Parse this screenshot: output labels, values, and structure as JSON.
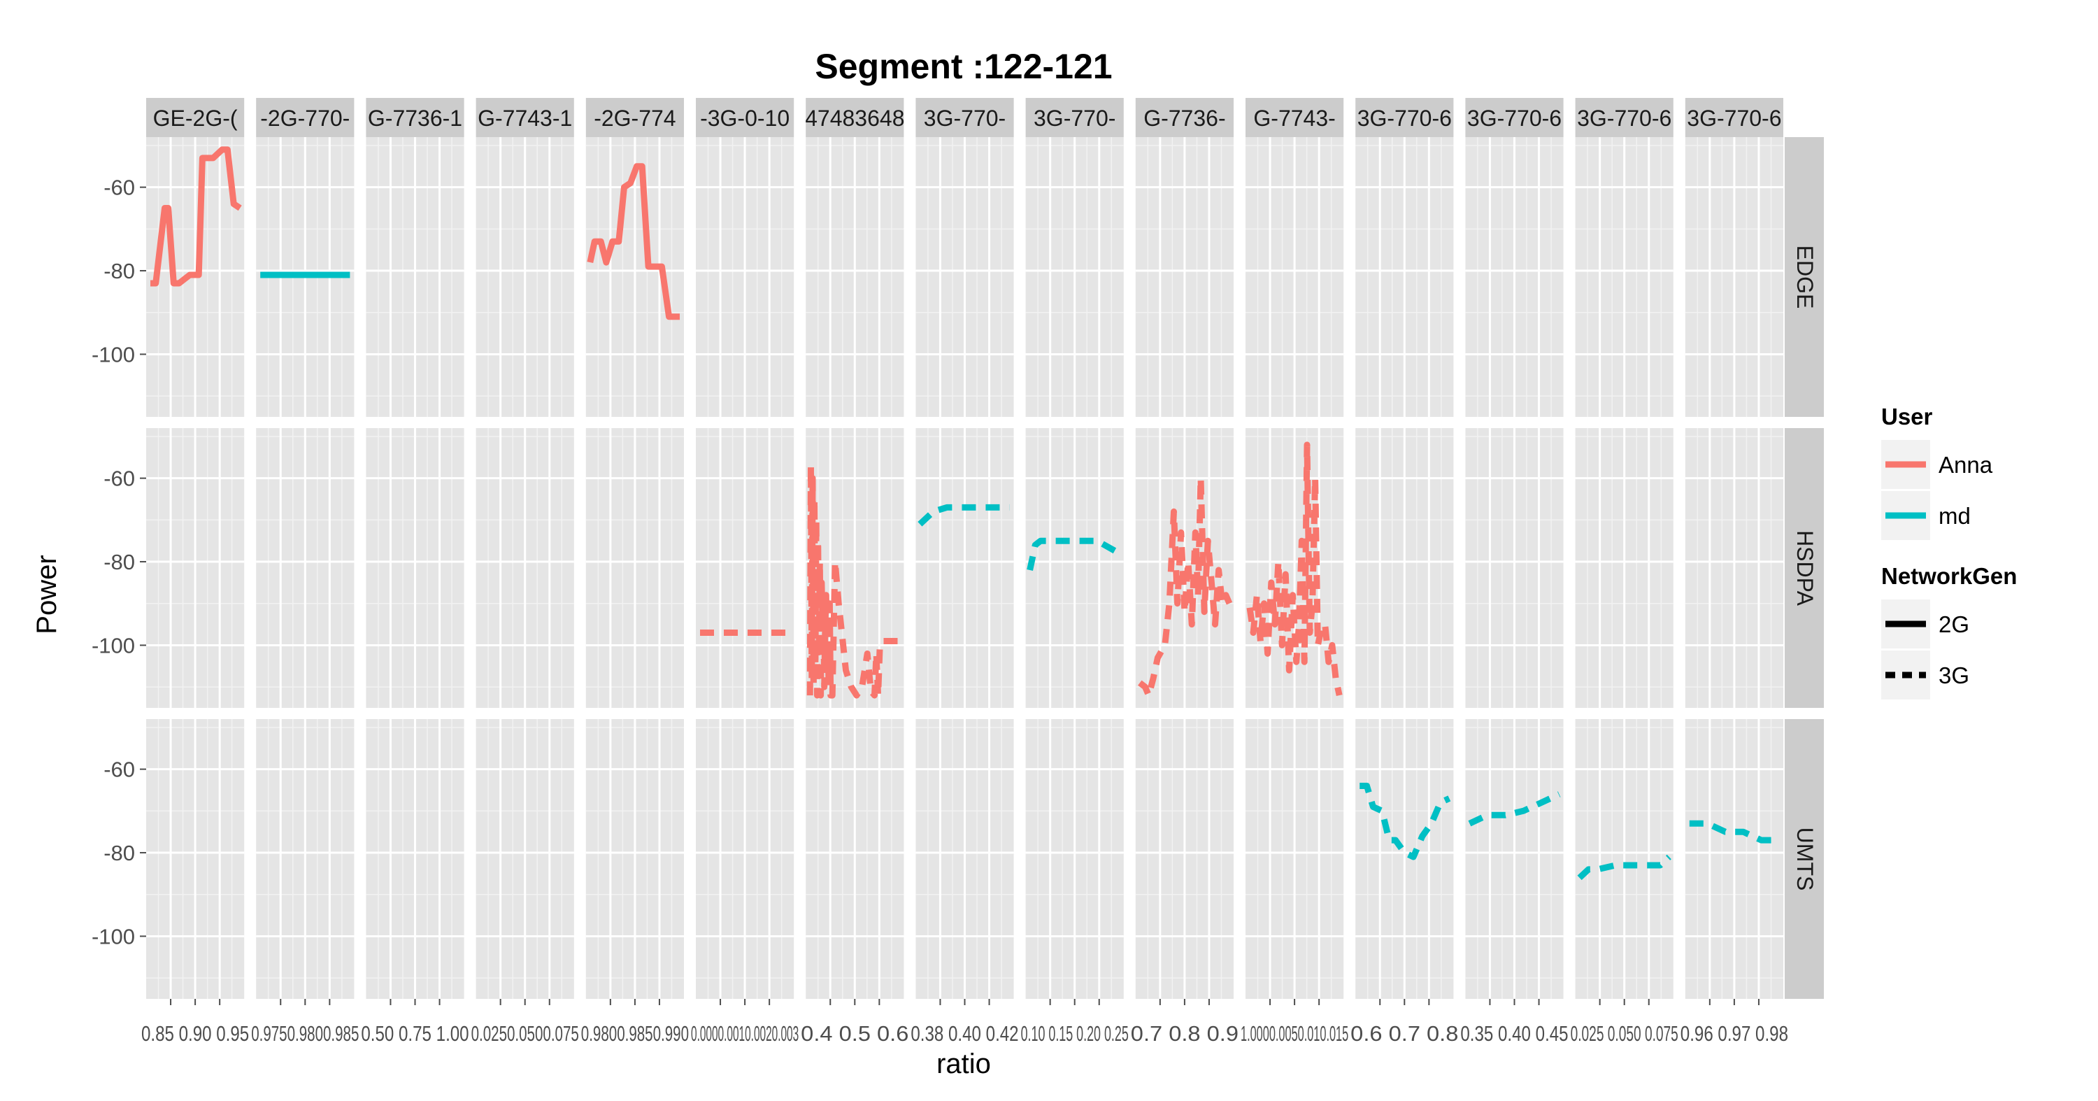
{
  "chart_data": {
    "type": "line",
    "title": "Segment :122-121",
    "xlabel": "ratio",
    "ylabel": "Power",
    "ylim": [
      -115,
      -48
    ],
    "y_ticks": [
      -60,
      -80,
      -100
    ],
    "y_tick_labels": [
      "-60",
      "-80",
      "-100"
    ],
    "rows": [
      "EDGE",
      "HSDPA",
      "UMTS"
    ],
    "columns": [
      {
        "label": "GE-2G-(",
        "x_tick_text": "0.85 0.90 0.95"
      },
      {
        "label": "-2G-770-",
        "x_tick_text": "0.9750.9800.985"
      },
      {
        "label": "G-7736-1",
        "x_tick_text": "0.50 0.75 1.00"
      },
      {
        "label": "G-7743-1",
        "x_tick_text": "0.0250.0500.075"
      },
      {
        "label": "-2G-774",
        "x_tick_text": "0.9800.9850.990"
      },
      {
        "label": "-3G-0-10",
        "x_tick_text": "0.0000.0010.0020.003"
      },
      {
        "label": "47483648",
        "x_tick_text": "0.4 0.5 0.6"
      },
      {
        "label": "3G-770-",
        "x_tick_text": "0.38 0.40 0.42"
      },
      {
        "label": "3G-770-",
        "x_tick_text": "0.10 0.15 0.20 0.25"
      },
      {
        "label": "G-7736-",
        "x_tick_text": "0.7 0.8 0.9"
      },
      {
        "label": "G-7743-",
        "x_tick_text": "1.0000.0050.010.015"
      },
      {
        "label": "3G-770-6",
        "x_tick_text": "0.6 0.7 0.8"
      },
      {
        "label": "3G-770-6",
        "x_tick_text": "0.35 0.40 0.45"
      },
      {
        "label": "3G-770-6",
        "x_tick_text": "0.025 0.050 0.075"
      },
      {
        "label": "3G-770-6",
        "x_tick_text": "0.96 0.97 0.98"
      }
    ],
    "series": [
      {
        "row": 0,
        "col": 0,
        "user": "Anna",
        "gen": "2G",
        "x": [
          0.0,
          0.06,
          0.16,
          0.2,
          0.26,
          0.32,
          0.38,
          0.44,
          0.54,
          0.58,
          0.64,
          0.7,
          0.8,
          0.86,
          0.93,
          1.0
        ],
        "y": [
          -83,
          -83,
          -65,
          -65,
          -83,
          -83,
          -82,
          -81,
          -81,
          -53,
          -53,
          -53,
          -51,
          -51,
          -64,
          -65
        ]
      },
      {
        "row": 0,
        "col": 1,
        "user": "md",
        "gen": "2G",
        "x": [
          0.0,
          1.0
        ],
        "y": [
          -81,
          -81
        ]
      },
      {
        "row": 0,
        "col": 4,
        "user": "Anna",
        "gen": "2G",
        "x": [
          0.0,
          0.05,
          0.12,
          0.18,
          0.25,
          0.32,
          0.38,
          0.45,
          0.52,
          0.58,
          0.65,
          0.72,
          0.8,
          0.88,
          0.93,
          1.0
        ],
        "y": [
          -78,
          -73,
          -73,
          -78,
          -73,
          -73,
          -60,
          -59,
          -55,
          -55,
          -79,
          -79,
          -79,
          -91,
          -91,
          -91
        ]
      },
      {
        "row": 1,
        "col": 5,
        "user": "Anna",
        "gen": "3G",
        "x": [
          0.0,
          1.0
        ],
        "y": [
          -97,
          -97
        ]
      },
      {
        "row": 1,
        "col": 6,
        "user": "Anna",
        "gen": "3G",
        "x": [
          0.0,
          0.01,
          0.02,
          0.03,
          0.04,
          0.05,
          0.06,
          0.07,
          0.08,
          0.09,
          0.1,
          0.11,
          0.12,
          0.13,
          0.14,
          0.15,
          0.16,
          0.17,
          0.18,
          0.19,
          0.2,
          0.21,
          0.22,
          0.23,
          0.25,
          0.28,
          0.32,
          0.36,
          0.4,
          0.46,
          0.52,
          0.58,
          0.64,
          0.68,
          0.72,
          0.74,
          0.76,
          0.78,
          0.82,
          0.88,
          0.94,
          1.0
        ],
        "y": [
          -112,
          -57,
          -108,
          -60,
          -110,
          -65,
          -105,
          -70,
          -112,
          -75,
          -100,
          -80,
          -112,
          -85,
          -95,
          -90,
          -110,
          -95,
          -88,
          -105,
          -100,
          -110,
          -90,
          -112,
          -112,
          -80,
          -90,
          -98,
          -106,
          -110,
          -112,
          -110,
          -102,
          -111,
          -112,
          -102,
          -112,
          -100,
          -99,
          -99,
          -99,
          -99
        ]
      },
      {
        "row": 1,
        "col": 7,
        "user": "md",
        "gen": "3G",
        "x": [
          0.0,
          0.15,
          0.3,
          0.5,
          0.7,
          1.0
        ],
        "y": [
          -71,
          -68,
          -67,
          -67,
          -67,
          -67
        ]
      },
      {
        "row": 1,
        "col": 8,
        "user": "md",
        "gen": "3G",
        "x": [
          0.0,
          0.06,
          0.12,
          0.25,
          0.5,
          0.75,
          1.0
        ],
        "y": [
          -82,
          -76,
          -75,
          -75,
          -75,
          -75,
          -78
        ]
      },
      {
        "row": 1,
        "col": 9,
        "user": "Anna",
        "gen": "3G",
        "x": [
          0.0,
          0.06,
          0.1,
          0.15,
          0.2,
          0.28,
          0.33,
          0.38,
          0.42,
          0.46,
          0.5,
          0.54,
          0.58,
          0.62,
          0.65,
          0.68,
          0.72,
          0.76,
          0.8,
          0.84,
          0.88,
          0.92,
          0.96,
          1.0
        ],
        "y": [
          -109,
          -110,
          -112,
          -108,
          -103,
          -100,
          -90,
          -68,
          -90,
          -73,
          -92,
          -80,
          -95,
          -73,
          -88,
          -60,
          -92,
          -75,
          -85,
          -95,
          -82,
          -90,
          -88,
          -90
        ]
      },
      {
        "row": 1,
        "col": 10,
        "user": "Anna",
        "gen": "3G",
        "x": [
          0.0,
          0.04,
          0.08,
          0.12,
          0.16,
          0.2,
          0.24,
          0.28,
          0.32,
          0.36,
          0.4,
          0.44,
          0.48,
          0.52,
          0.55,
          0.58,
          0.61,
          0.64,
          0.67,
          0.7,
          0.73,
          0.76,
          0.8,
          0.84,
          0.88,
          0.92,
          0.96,
          1.0
        ],
        "y": [
          -91,
          -97,
          -88,
          -99,
          -90,
          -102,
          -85,
          -95,
          -80,
          -100,
          -83,
          -106,
          -88,
          -104,
          -95,
          -75,
          -104,
          -52,
          -97,
          -90,
          -60,
          -100,
          -96,
          -95,
          -104,
          -100,
          -108,
          -112
        ]
      },
      {
        "row": 2,
        "col": 11,
        "user": "md",
        "gen": "3G",
        "x": [
          0.0,
          0.08,
          0.15,
          0.25,
          0.33,
          0.4,
          0.5,
          0.6,
          0.7,
          0.8,
          0.9,
          1.0
        ],
        "y": [
          -64,
          -64,
          -69,
          -70,
          -77,
          -77,
          -80,
          -81,
          -76,
          -73,
          -68,
          -67
        ]
      },
      {
        "row": 2,
        "col": 12,
        "user": "md",
        "gen": "3G",
        "x": [
          0.0,
          0.2,
          0.4,
          0.6,
          0.8,
          1.0
        ],
        "y": [
          -73,
          -71,
          -71,
          -70,
          -68,
          -66
        ]
      },
      {
        "row": 2,
        "col": 13,
        "user": "md",
        "gen": "3G",
        "x": [
          0.0,
          0.1,
          0.2,
          0.4,
          0.6,
          0.8,
          0.9,
          1.0
        ],
        "y": [
          -86,
          -84,
          -84,
          -83,
          -83,
          -83,
          -83,
          -81
        ]
      },
      {
        "row": 2,
        "col": 14,
        "user": "md",
        "gen": "3G",
        "x": [
          0.0,
          0.2,
          0.4,
          0.6,
          0.8,
          1.0
        ],
        "y": [
          -73,
          -73,
          -75,
          -75,
          -77,
          -77
        ]
      }
    ],
    "legend": {
      "placement": "right",
      "groups": [
        {
          "title": "User",
          "items": [
            {
              "label": "Anna",
              "color": "#F8766D"
            },
            {
              "label": "md",
              "color": "#00BFC4"
            }
          ]
        },
        {
          "title": "NetworkGen",
          "items": [
            {
              "label": "2G",
              "linetype": "solid"
            },
            {
              "label": "3G",
              "linetype": "dashed"
            }
          ]
        }
      ]
    },
    "colors": {
      "Anna": "#F8766D",
      "md": "#00BFC4",
      "panel_bg": "#E5E5E5",
      "strip_bg": "#CCCCCC",
      "grid_major": "#FFFFFF",
      "grid_minor": "#F2F2F2"
    },
    "grid": true
  }
}
